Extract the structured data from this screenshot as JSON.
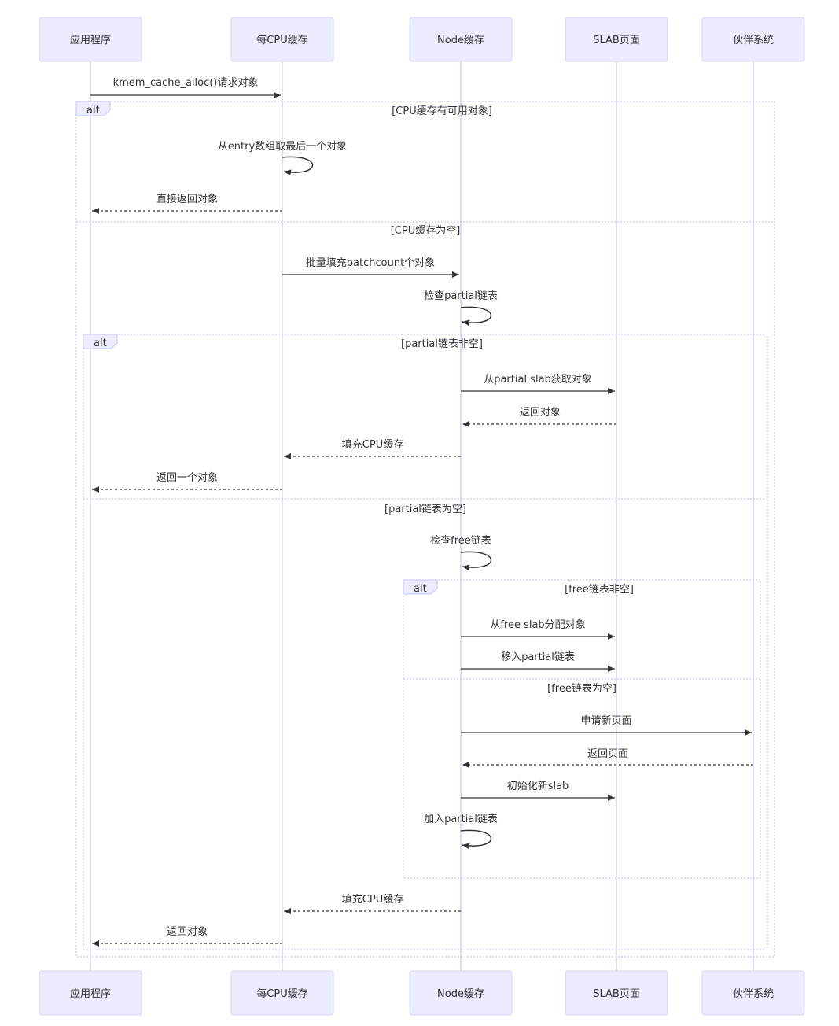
{
  "actors": [
    {
      "id": "app",
      "label": "应用程序"
    },
    {
      "id": "cpu",
      "label": "每CPU缓存"
    },
    {
      "id": "node",
      "label": "Node缓存"
    },
    {
      "id": "slab",
      "label": "SLAB页面"
    },
    {
      "id": "buddy",
      "label": "伙伴系统"
    }
  ],
  "frames": [
    {
      "id": "alt1",
      "tag": "alt",
      "sections": [
        "[CPU缓存有可用对象]",
        "[CPU缓存为空]"
      ]
    },
    {
      "id": "alt2",
      "tag": "alt",
      "sections": [
        "[partial链表非空]",
        "[partial链表为空]"
      ]
    },
    {
      "id": "alt3",
      "tag": "alt",
      "sections": [
        "[free链表非空]",
        "[free链表为空]"
      ]
    }
  ],
  "messages": [
    {
      "from": "app",
      "to": "cpu",
      "text": "kmem_cache_alloc()请求对象",
      "style": "solid"
    },
    {
      "from": "cpu",
      "to": "cpu",
      "text": "从entry数组取最后一个对象",
      "style": "solid"
    },
    {
      "from": "cpu",
      "to": "app",
      "text": "直接返回对象",
      "style": "dashed"
    },
    {
      "from": "cpu",
      "to": "node",
      "text": "批量填充batchcount个对象",
      "style": "solid"
    },
    {
      "from": "node",
      "to": "node",
      "text": "检查partial链表",
      "style": "solid"
    },
    {
      "from": "node",
      "to": "slab",
      "text": "从partial slab获取对象",
      "style": "solid"
    },
    {
      "from": "slab",
      "to": "node",
      "text": "返回对象",
      "style": "dashed"
    },
    {
      "from": "node",
      "to": "cpu",
      "text": "填充CPU缓存",
      "style": "dashed"
    },
    {
      "from": "cpu",
      "to": "app",
      "text": "返回一个对象",
      "style": "dashed"
    },
    {
      "from": "node",
      "to": "node",
      "text": "检查free链表",
      "style": "solid"
    },
    {
      "from": "node",
      "to": "slab",
      "text": "从free slab分配对象",
      "style": "solid"
    },
    {
      "from": "node",
      "to": "slab",
      "text": "移入partial链表",
      "style": "solid"
    },
    {
      "from": "node",
      "to": "buddy",
      "text": "申请新页面",
      "style": "solid"
    },
    {
      "from": "buddy",
      "to": "node",
      "text": "返回页面",
      "style": "dashed"
    },
    {
      "from": "node",
      "to": "slab",
      "text": "初始化新slab",
      "style": "solid"
    },
    {
      "from": "node",
      "to": "node",
      "text": "加入partial链表",
      "style": "solid"
    },
    {
      "from": "node",
      "to": "cpu",
      "text": "填充CPU缓存",
      "style": "dashed"
    },
    {
      "from": "cpu",
      "to": "app",
      "text": "返回对象",
      "style": "dashed"
    }
  ]
}
